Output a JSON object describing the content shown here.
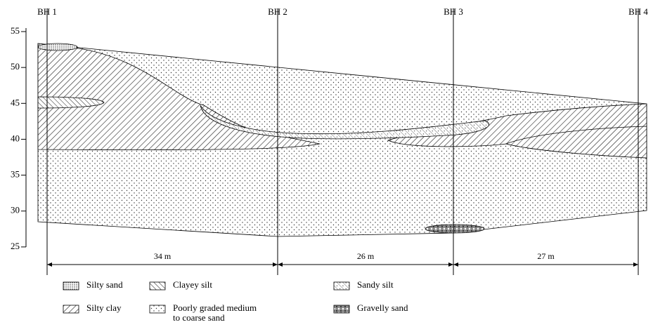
{
  "boreholes": [
    "BH 1",
    "BH 2",
    "BH 3",
    "BH 4"
  ],
  "elevation_ticks": [
    55,
    50,
    45,
    40,
    35,
    30,
    25
  ],
  "distances": [
    "34 m",
    "26 m",
    "27 m"
  ],
  "legend": {
    "silty_sand": "Silty sand",
    "clayey_silt": "Clayey silt",
    "sandy_silt": "Sandy silt",
    "silty_clay": "Silty clay",
    "poorly_graded": [
      "Poorly graded medium",
      "to coarse sand"
    ],
    "gravelly_sand": "Gravelly sand"
  }
}
